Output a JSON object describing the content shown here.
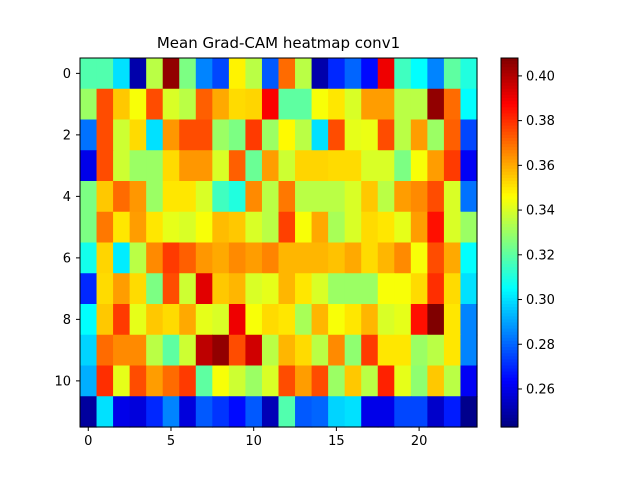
{
  "chart_data": {
    "type": "heatmap",
    "title": "Mean Grad-CAM heatmap conv1",
    "colormap": "jet",
    "vmin": 0.243,
    "vmax": 0.408,
    "x_ticks": [
      0,
      5,
      10,
      15,
      20
    ],
    "y_ticks": [
      0,
      2,
      4,
      6,
      8,
      10
    ],
    "colorbar_ticks": [
      0.26,
      0.28,
      0.3,
      0.32,
      0.34,
      0.36,
      0.38,
      0.4
    ],
    "colorbar_tick_labels": [
      "0.26",
      "0.28",
      "0.30",
      "0.32",
      "0.34",
      "0.36",
      "0.38",
      "0.40"
    ],
    "rows": 12,
    "cols": 24,
    "values": [
      [
        0.318,
        0.318,
        0.3,
        0.25,
        0.335,
        0.405,
        0.325,
        0.285,
        0.275,
        0.348,
        0.335,
        0.278,
        0.37,
        0.335,
        0.25,
        0.27,
        0.28,
        0.265,
        0.39,
        0.315,
        0.305,
        0.285,
        0.32,
        0.31
      ],
      [
        0.33,
        0.375,
        0.355,
        0.345,
        0.375,
        0.34,
        0.335,
        0.372,
        0.36,
        0.352,
        0.353,
        0.388,
        0.32,
        0.32,
        0.345,
        0.35,
        0.34,
        0.362,
        0.362,
        0.335,
        0.335,
        0.405,
        0.37,
        0.305
      ],
      [
        0.282,
        0.375,
        0.338,
        0.352,
        0.3,
        0.363,
        0.375,
        0.375,
        0.33,
        0.325,
        0.378,
        0.33,
        0.347,
        0.335,
        0.3,
        0.375,
        0.342,
        0.343,
        0.375,
        0.335,
        0.362,
        0.33,
        0.372,
        0.275
      ],
      [
        0.26,
        0.375,
        0.338,
        0.33,
        0.33,
        0.352,
        0.363,
        0.363,
        0.34,
        0.372,
        0.322,
        0.362,
        0.338,
        0.353,
        0.353,
        0.352,
        0.352,
        0.34,
        0.34,
        0.325,
        0.345,
        0.362,
        0.378,
        0.262
      ],
      [
        0.325,
        0.355,
        0.37,
        0.363,
        0.33,
        0.35,
        0.35,
        0.34,
        0.315,
        0.31,
        0.365,
        0.335,
        0.368,
        0.335,
        0.335,
        0.335,
        0.34,
        0.355,
        0.335,
        0.362,
        0.365,
        0.375,
        0.34,
        0.282
      ],
      [
        0.325,
        0.368,
        0.35,
        0.362,
        0.35,
        0.342,
        0.34,
        0.345,
        0.357,
        0.355,
        0.34,
        0.335,
        0.377,
        0.345,
        0.36,
        0.332,
        0.34,
        0.352,
        0.35,
        0.342,
        0.362,
        0.385,
        0.34,
        0.33
      ],
      [
        0.308,
        0.353,
        0.302,
        0.335,
        0.365,
        0.378,
        0.372,
        0.363,
        0.36,
        0.365,
        0.362,
        0.366,
        0.358,
        0.358,
        0.358,
        0.356,
        0.36,
        0.352,
        0.358,
        0.365,
        0.345,
        0.375,
        0.36,
        0.305
      ],
      [
        0.27,
        0.352,
        0.362,
        0.352,
        0.325,
        0.375,
        0.338,
        0.392,
        0.355,
        0.358,
        0.34,
        0.342,
        0.358,
        0.35,
        0.34,
        0.33,
        0.33,
        0.33,
        0.345,
        0.345,
        0.352,
        0.38,
        0.352,
        0.3
      ],
      [
        0.305,
        0.355,
        0.378,
        0.342,
        0.355,
        0.352,
        0.36,
        0.342,
        0.34,
        0.39,
        0.345,
        0.352,
        0.35,
        0.332,
        0.358,
        0.345,
        0.35,
        0.358,
        0.34,
        0.342,
        0.385,
        0.408,
        0.35,
        0.285
      ],
      [
        0.298,
        0.37,
        0.365,
        0.365,
        0.335,
        0.32,
        0.338,
        0.398,
        0.405,
        0.375,
        0.395,
        0.335,
        0.358,
        0.352,
        0.335,
        0.365,
        0.328,
        0.378,
        0.35,
        0.35,
        0.33,
        0.335,
        0.35,
        0.285
      ],
      [
        0.292,
        0.38,
        0.342,
        0.375,
        0.362,
        0.37,
        0.378,
        0.32,
        0.345,
        0.338,
        0.33,
        0.34,
        0.375,
        0.362,
        0.375,
        0.33,
        0.355,
        0.335,
        0.382,
        0.342,
        0.328,
        0.355,
        0.335,
        0.262
      ],
      [
        0.248,
        0.3,
        0.26,
        0.258,
        0.27,
        0.285,
        0.258,
        0.278,
        0.272,
        0.265,
        0.278,
        0.252,
        0.318,
        0.278,
        0.28,
        0.298,
        0.3,
        0.26,
        0.26,
        0.275,
        0.275,
        0.255,
        0.268,
        0.245
      ]
    ]
  }
}
